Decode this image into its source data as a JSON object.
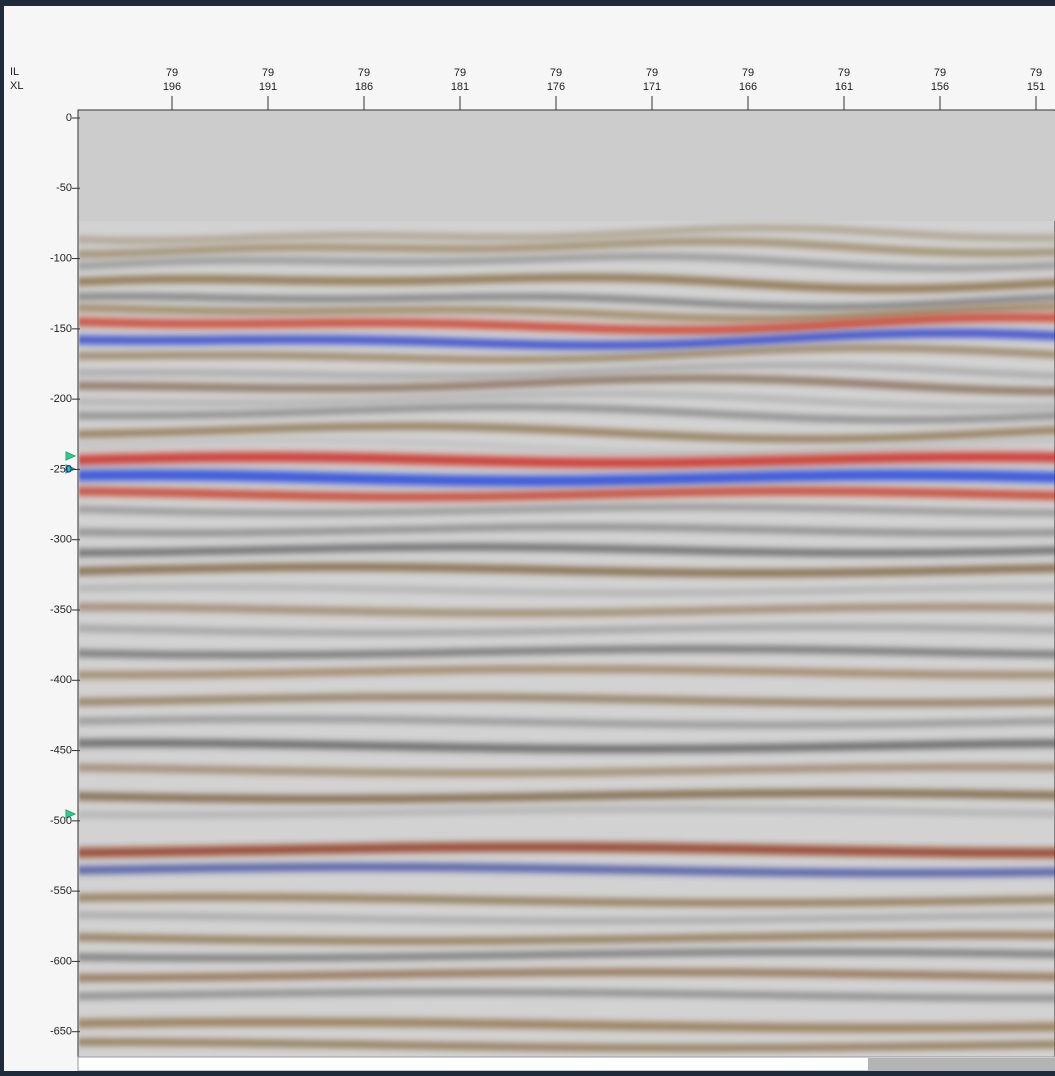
{
  "axis_labels": [
    "IL",
    "XL"
  ],
  "x_ticks": [
    {
      "il": "79",
      "xl": "196"
    },
    {
      "il": "79",
      "xl": "191"
    },
    {
      "il": "79",
      "xl": "186"
    },
    {
      "il": "79",
      "xl": "181"
    },
    {
      "il": "79",
      "xl": "176"
    },
    {
      "il": "79",
      "xl": "171"
    },
    {
      "il": "79",
      "xl": "166"
    },
    {
      "il": "79",
      "xl": "161"
    },
    {
      "il": "79",
      "xl": "156"
    },
    {
      "il": "79",
      "xl": "151"
    }
  ],
  "ylim": [
    0,
    -668
  ],
  "yticks": [
    0,
    -50,
    -100,
    -150,
    -200,
    -250,
    -300,
    -350,
    -400,
    -450,
    -500,
    -550,
    -600,
    -650
  ]
}
